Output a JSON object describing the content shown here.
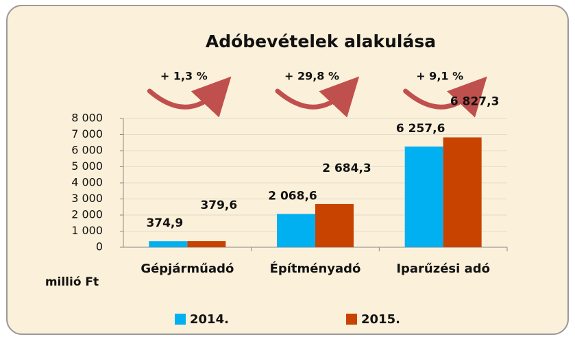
{
  "chart_data": {
    "type": "bar",
    "title": "Adóbevételek alakulása",
    "y_label": "millió Ft",
    "categories": [
      "Gépjárműadó",
      "Építményadó",
      "Iparűzési adó"
    ],
    "annotations": [
      "+ 1,3 %",
      "+ 29,8 %",
      "+ 9,1 %"
    ],
    "series": [
      {
        "name": "2014.",
        "color": "#00b0f0",
        "values": [
          374.9,
          2068.6,
          6257.6
        ],
        "value_labels": [
          "374,9",
          "2 068,6",
          "6 257,6"
        ]
      },
      {
        "name": "2015.",
        "color": "#c84300",
        "values": [
          379.6,
          2684.3,
          6827.3
        ],
        "value_labels": [
          "379,6",
          "2 684,3",
          "6 827,3"
        ]
      }
    ],
    "ylim": [
      0,
      8000
    ],
    "yticks": [
      0,
      {
        "value": 1000,
        "label": "1 000"
      },
      {
        "value": 2000,
        "label": "2 000"
      },
      {
        "value": 3000,
        "label": "3 000"
      },
      {
        "value": 4000,
        "label": "4 000"
      },
      {
        "value": 5000,
        "label": "5 000"
      },
      {
        "value": 6000,
        "label": "6 000"
      },
      {
        "value": 7000,
        "label": "7 000"
      },
      {
        "value": 8000,
        "label": "8 000"
      }
    ],
    "grid": true
  }
}
